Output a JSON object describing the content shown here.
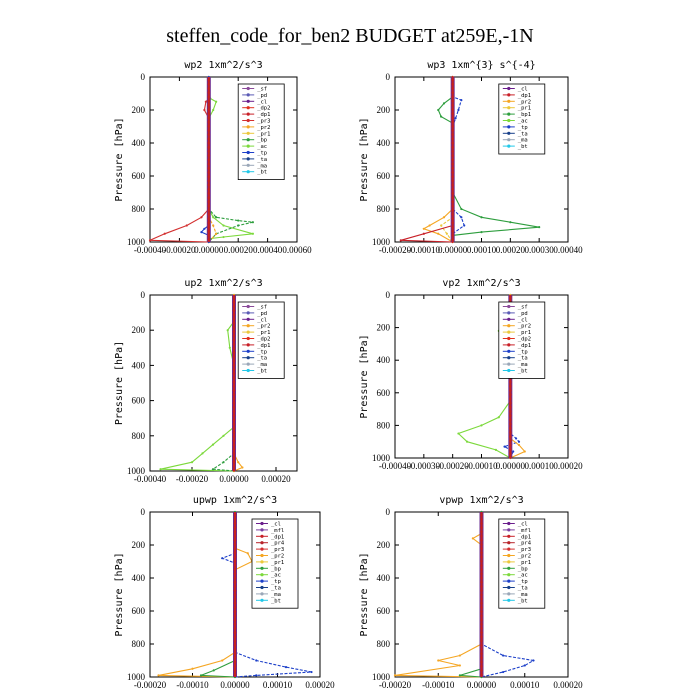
{
  "figure_title": "steffen_code_for_ben2  BUDGET at259E,-1N",
  "colors": {
    "sf": "#8B4B9A",
    "pd": "#5B5BB5",
    "cl": "#6A1E8C",
    "dp2": "#E0301E",
    "dp1": "#C82028",
    "pr3": "#D32F2F",
    "pr2": "#F5A623",
    "pr1": "#EBC83C",
    "bp": "#2E9E3E",
    "ac": "#7CD93C",
    "tp": "#1C3FC9",
    "ta": "#18408A",
    "ma": "#9AA7B8",
    "bt": "#22C8E8",
    "mfl": "#7B3FA0",
    "pr4": "#B7242A",
    "bp1": "#2E9E3E",
    "main": "#C8211E",
    "bar": "#6A2C91"
  },
  "chart_data": [
    {
      "type": "line",
      "title": "wp2   1xm^2/s^3",
      "ylabel": "Pressure  [hPa]",
      "xlim": [
        -0.0004,
        0.0006
      ],
      "ylim": [
        1000,
        0
      ],
      "xticks": [
        "-0.00040",
        "-0.00020",
        "0.00000",
        "0.00020",
        "0.00040",
        "0.00060"
      ],
      "yticks": [
        "0",
        "200",
        "400",
        "600",
        "800",
        "1000"
      ],
      "legend": [
        "_sf",
        "_pd",
        "_cl",
        "_dp2",
        "_dp1",
        "_pr3",
        "_pr2",
        "_pr1",
        "_bp",
        "_ac",
        "_tp",
        "_ta",
        "_ma",
        "_bt"
      ],
      "legend_position": "top-right",
      "series": [
        {
          "name": "_ac",
          "color": "ac",
          "points": [
            [
              0,
              0
            ],
            [
              0,
              100
            ],
            [
              1e-05,
              130
            ],
            [
              5e-05,
              150
            ],
            [
              3e-05,
              200
            ],
            [
              0,
              250
            ],
            [
              0,
              600
            ],
            [
              0,
              800
            ],
            [
              3e-05,
              850
            ],
            [
              0.0001,
              900
            ],
            [
              0.0003,
              950
            ],
            [
              0.0001,
              970
            ],
            [
              0,
              980
            ],
            [
              0,
              1000
            ]
          ]
        },
        {
          "name": "_bp",
          "color": "bp",
          "points": [
            [
              0,
              0
            ],
            [
              0,
              800
            ],
            [
              5e-05,
              850
            ],
            [
              0.0002,
              870
            ],
            [
              0.0003,
              880
            ],
            [
              0.0002,
              900
            ],
            [
              5e-05,
              950
            ],
            [
              0,
              1000
            ]
          ]
        },
        {
          "name": "_pr3",
          "color": "pr3",
          "points": [
            [
              0,
              0
            ],
            [
              0,
              130
            ],
            [
              -2e-05,
              150
            ],
            [
              -3e-05,
              200
            ],
            [
              0,
              250
            ],
            [
              0,
              800
            ],
            [
              -5e-05,
              850
            ],
            [
              -0.00015,
              900
            ],
            [
              -0.0003,
              950
            ],
            [
              -0.0004,
              990
            ],
            [
              0,
              1000
            ]
          ]
        },
        {
          "name": "_pr2",
          "color": "pr2",
          "points": [
            [
              0,
              0
            ],
            [
              0,
              850
            ],
            [
              3e-05,
              900
            ],
            [
              5e-05,
              950
            ],
            [
              0,
              1000
            ]
          ]
        },
        {
          "name": "_tp",
          "color": "tp",
          "points": [
            [
              0,
              0
            ],
            [
              0,
              900
            ],
            [
              -3e-05,
              920
            ],
            [
              -5e-05,
              940
            ],
            [
              0,
              960
            ],
            [
              0,
              1000
            ]
          ]
        }
      ]
    },
    {
      "type": "line",
      "title": "wp3   1xm^{3} s^{-4}",
      "ylabel": "Pressure  [hPa]",
      "xlim": [
        -0.0002,
        0.0004
      ],
      "ylim": [
        1000,
        0
      ],
      "xticks": [
        "-0.00020",
        "-0.00010",
        "0.00000",
        "0.00010",
        "0.00020",
        "0.00030",
        "0.00040"
      ],
      "yticks": [
        "0",
        "200",
        "400",
        "600",
        "800",
        "1000"
      ],
      "legend": [
        "_cl",
        "_dp1",
        "_pr2",
        "_pr1",
        "_bp1",
        "_ac",
        "_tp",
        "_ta",
        "_ma",
        "_bt"
      ],
      "legend_position": "top-right",
      "series": [
        {
          "name": "_bp1",
          "color": "bp",
          "points": [
            [
              0,
              0
            ],
            [
              0,
              120
            ],
            [
              -3e-05,
              160
            ],
            [
              -5e-05,
              200
            ],
            [
              -4e-05,
              240
            ],
            [
              0,
              280
            ],
            [
              0,
              700
            ],
            [
              3e-05,
              800
            ],
            [
              0.0001,
              850
            ],
            [
              0.0002,
              880
            ],
            [
              0.0003,
              910
            ],
            [
              0.0001,
              940
            ],
            [
              0,
              960
            ],
            [
              0,
              1000
            ]
          ]
        },
        {
          "name": "_tp",
          "color": "tp",
          "points": [
            [
              0,
              0
            ],
            [
              0,
              120
            ],
            [
              3e-05,
              140
            ],
            [
              2e-05,
              200
            ],
            [
              1e-05,
              250
            ],
            [
              0,
              300
            ],
            [
              0,
              800
            ],
            [
              3e-05,
              850
            ],
            [
              4e-05,
              900
            ],
            [
              0,
              950
            ],
            [
              0,
              1000
            ]
          ]
        },
        {
          "name": "_pr2",
          "color": "pr2",
          "points": [
            [
              0,
              0
            ],
            [
              0,
              800
            ],
            [
              -3e-05,
              850
            ],
            [
              -8e-05,
              900
            ],
            [
              -0.0001,
              920
            ],
            [
              -5e-05,
              950
            ],
            [
              0,
              1000
            ]
          ]
        },
        {
          "name": "_pr1",
          "color": "pr1",
          "points": [
            [
              0,
              0
            ],
            [
              0,
              850
            ],
            [
              -4e-05,
              900
            ],
            [
              -2e-05,
              950
            ],
            [
              0,
              1000
            ]
          ]
        },
        {
          "name": "_dp1",
          "color": "dp1",
          "points": [
            [
              0,
              0
            ],
            [
              0,
              900
            ],
            [
              -0.0001,
              950
            ],
            [
              -0.00018,
              990
            ],
            [
              0,
              1000
            ]
          ]
        }
      ]
    },
    {
      "type": "line",
      "title": "up2   1xm^2/s^3",
      "ylabel": "Pressure  [hPa]",
      "xlim": [
        -0.0004,
        0.0003
      ],
      "ylim": [
        1000,
        0
      ],
      "xticks": [
        "-0.00040",
        "-0.00020",
        "0.00000",
        "0.00020"
      ],
      "yticks": [
        "0",
        "200",
        "400",
        "600",
        "800",
        "1000"
      ],
      "legend": [
        "_sf",
        "_pd",
        "_cl",
        "_pr2",
        "_pr1",
        "_dp2",
        "_dp1",
        "_tp",
        "_ta",
        "_ma",
        "_bt"
      ],
      "legend_position": "top-right",
      "series": [
        {
          "name": "_dp1",
          "color": "ac",
          "points": [
            [
              0,
              0
            ],
            [
              0,
              150
            ],
            [
              -3e-05,
              200
            ],
            [
              -2e-05,
              300
            ],
            [
              0,
              400
            ],
            [
              0,
              750
            ],
            [
              -5e-05,
              800
            ],
            [
              -0.0001,
              850
            ],
            [
              -0.00015,
              900
            ],
            [
              -0.0002,
              950
            ],
            [
              -0.00035,
              990
            ],
            [
              0,
              1000
            ]
          ]
        },
        {
          "name": "_dp2",
          "color": "bp",
          "points": [
            [
              0,
              0
            ],
            [
              0,
              900
            ],
            [
              -5e-05,
              950
            ],
            [
              -0.0001,
              990
            ],
            [
              0,
              1000
            ]
          ]
        },
        {
          "name": "_pr2",
          "color": "pr2",
          "points": [
            [
              0,
              0
            ],
            [
              0,
              900
            ],
            [
              2e-05,
              950
            ],
            [
              4e-05,
              980
            ],
            [
              0,
              1000
            ]
          ]
        }
      ]
    },
    {
      "type": "line",
      "title": "vp2   1xm^2/s^3",
      "ylabel": "Pressure  [hPa]",
      "xlim": [
        -0.0004,
        0.0002
      ],
      "ylim": [
        1000,
        0
      ],
      "xticks": [
        "-0.00040",
        "-0.00030",
        "-0.00020",
        "-0.00010",
        "0.00000",
        "0.00010",
        "0.00020"
      ],
      "yticks": [
        "0",
        "200",
        "400",
        "600",
        "800",
        "1000"
      ],
      "legend": [
        "_sf",
        "_pd",
        "_cl",
        "_pr2",
        "_pr1",
        "_dp2",
        "_dp1",
        "_tp",
        "_ta",
        "_ma",
        "_bt"
      ],
      "legend_position": "top-right",
      "series": [
        {
          "name": "_dp1",
          "color": "ac",
          "points": [
            [
              0,
              0
            ],
            [
              0,
              120
            ],
            [
              -3e-05,
              160
            ],
            [
              -4e-05,
              220
            ],
            [
              -2e-05,
              300
            ],
            [
              0,
              350
            ],
            [
              0,
              650
            ],
            [
              -4e-05,
              750
            ],
            [
              -0.0001,
              800
            ],
            [
              -0.00018,
              850
            ],
            [
              -0.00015,
              900
            ],
            [
              -5e-05,
              950
            ],
            [
              0,
              1000
            ]
          ]
        },
        {
          "name": "_tp",
          "color": "tp",
          "points": [
            [
              0,
              0
            ],
            [
              0,
              850
            ],
            [
              2e-05,
              880
            ],
            [
              3e-05,
              900
            ],
            [
              -2e-05,
              930
            ],
            [
              1e-05,
              960
            ],
            [
              0,
              1000
            ]
          ]
        },
        {
          "name": "_pr2",
          "color": "pr2",
          "points": [
            [
              0,
              0
            ],
            [
              0,
              880
            ],
            [
              3e-05,
              920
            ],
            [
              5e-05,
              960
            ],
            [
              0,
              1000
            ]
          ]
        }
      ]
    },
    {
      "type": "line",
      "title": "upwp   1xm^2/s^3",
      "ylabel": "Pressure  [hPa]",
      "xlim": [
        -0.0002,
        0.0002
      ],
      "ylim": [
        1000,
        0
      ],
      "xticks": [
        "-0.00020",
        "-0.00010",
        "0.00000",
        "0.00010",
        "0.00020"
      ],
      "yticks": [
        "0",
        "200",
        "400",
        "600",
        "800",
        "1000"
      ],
      "legend": [
        "_cl",
        "_mfl",
        "_dp1",
        "_pr4",
        "_pr3",
        "_pr2",
        "_pr1",
        "_bp",
        "_ac",
        "_tp",
        "_ta",
        "_ma",
        "_bt"
      ],
      "legend_position": "top-right",
      "series": [
        {
          "name": "_pr2",
          "color": "pr2",
          "points": [
            [
              0,
              0
            ],
            [
              0,
              220
            ],
            [
              3e-05,
              250
            ],
            [
              4e-05,
              300
            ],
            [
              0,
              350
            ],
            [
              0,
              850
            ],
            [
              -3e-05,
              900
            ],
            [
              -0.0001,
              950
            ],
            [
              -0.00018,
              990
            ],
            [
              0,
              1000
            ]
          ]
        },
        {
          "name": "_tp",
          "color": "tp",
          "points": [
            [
              0,
              0
            ],
            [
              0,
              250
            ],
            [
              -3e-05,
              280
            ],
            [
              0,
              310
            ],
            [
              0,
              850
            ],
            [
              5e-05,
              900
            ],
            [
              0.00012,
              940
            ],
            [
              0.00018,
              970
            ],
            [
              5e-05,
              990
            ],
            [
              0,
              1000
            ]
          ]
        },
        {
          "name": "_bp",
          "color": "bp",
          "points": [
            [
              0,
              0
            ],
            [
              0,
              900
            ],
            [
              -5e-05,
              960
            ],
            [
              -8e-05,
              990
            ],
            [
              0,
              1000
            ]
          ]
        }
      ]
    },
    {
      "type": "line",
      "title": "vpwp   1xm^2/s^3",
      "ylabel": "Pressure  [hPa]",
      "xlim": [
        -0.0002,
        0.0002
      ],
      "ylim": [
        1000,
        0
      ],
      "xticks": [
        "-0.00020",
        "-0.00010",
        "0.00000",
        "0.00010",
        "0.00020"
      ],
      "yticks": [
        "0",
        "200",
        "400",
        "600",
        "800",
        "1000"
      ],
      "legend": [
        "_cl",
        "_mfl",
        "_dp1",
        "_pr4",
        "_pr3",
        "_pr2",
        "_pr1",
        "_bp",
        "_ac",
        "_tp",
        "_ta",
        "_ma",
        "_bt"
      ],
      "legend_position": "top-right",
      "series": [
        {
          "name": "_pr2",
          "color": "pr2",
          "points": [
            [
              0,
              0
            ],
            [
              0,
              130
            ],
            [
              -2e-05,
              160
            ],
            [
              0,
              200
            ],
            [
              0,
              800
            ],
            [
              -5e-05,
              870
            ],
            [
              -0.0001,
              900
            ],
            [
              -5e-05,
              930
            ],
            [
              -0.0002,
              990
            ],
            [
              0,
              1000
            ]
          ]
        },
        {
          "name": "_tp",
          "color": "tp",
          "points": [
            [
              0,
              0
            ],
            [
              0,
              800
            ],
            [
              5e-05,
              870
            ],
            [
              0.00012,
              900
            ],
            [
              0.0001,
              930
            ],
            [
              5e-05,
              970
            ],
            [
              0,
              1000
            ]
          ]
        },
        {
          "name": "_bp",
          "color": "bp",
          "points": [
            [
              0,
              0
            ],
            [
              0,
              950
            ],
            [
              -5e-05,
              990
            ],
            [
              0,
              1000
            ]
          ]
        }
      ]
    }
  ]
}
